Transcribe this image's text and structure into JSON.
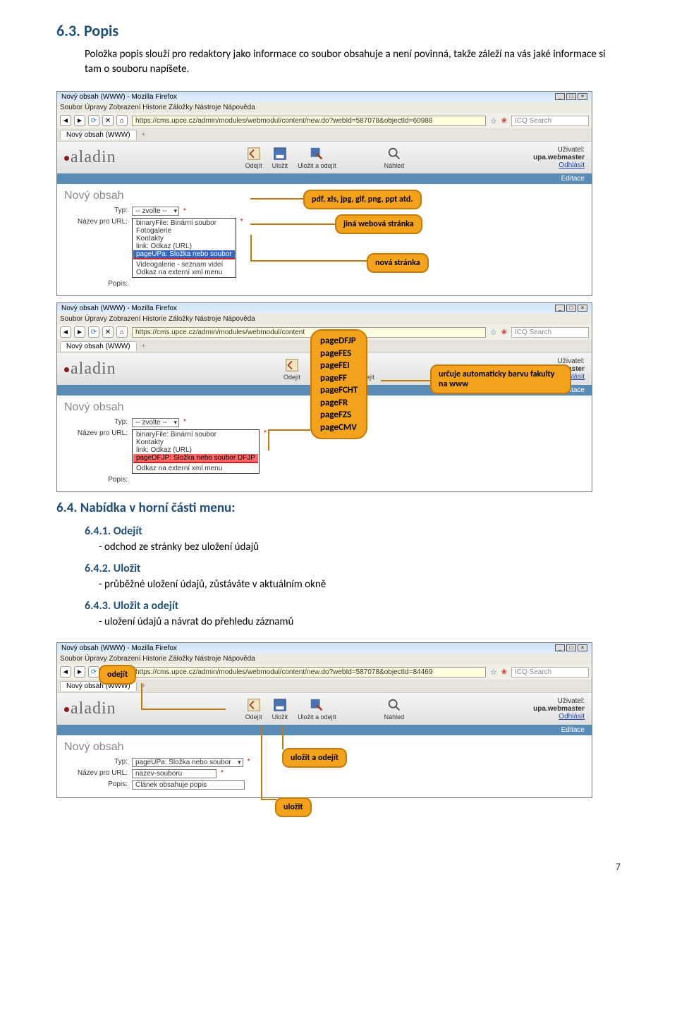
{
  "section63": {
    "heading": "6.3. Popis",
    "body": "Položka popis slouží pro redaktory jako informace co soubor obsahuje a není povinná, takže záleží na vás jaké informace si tam o souboru napíšete."
  },
  "callouts1": {
    "pdf": "pdf, xls, jpg, gif, png, ppt atd.",
    "jina": "jiná webová stránka",
    "nova": "nová stránka"
  },
  "callouts2": {
    "pagesHeading": "",
    "pages": [
      "pageDFJP",
      "pageFES",
      "pageFEI",
      "pageFF",
      "pageFCHT",
      "pageFR",
      "pageFZS",
      "pageCMV"
    ],
    "barva": "určuje automaticky barvu fakulty na www"
  },
  "browser": {
    "title": "Nový obsah (WWW) - Mozilla Firefox",
    "menus": "Soubor  Úpravy  Zobrazení  Historie  Záložky  Nástroje  Nápověda",
    "url1": "https://cms.upce.cz/admin/modules/webmodul/content/new.do?webId=587078&objectId=60988",
    "url2": "https://cms.upce.cz/admin/modules/webmodul/content",
    "url3": "https://cms.upce.cz/admin/modules/webmodul/content/new.do?webId=587078&objectId=84469",
    "tabLabel": "Nový obsah (WWW)",
    "searchPlaceholder": "ICQ Search",
    "logo": "aladin",
    "tools": {
      "odejit": "Odejít",
      "ulozit": "Uložit",
      "ulozitOdejit": "Uložit a odejít",
      "nahled": "Náhled"
    },
    "userLabel": "Uživatel:",
    "userName": "upa.webmaster",
    "logout": "Odhlásit",
    "editace": "Editace",
    "formTitle": "Nový obsah",
    "labels": {
      "typ": "Typ:",
      "nazev": "Název pro URL:",
      "popis": "Popis:"
    },
    "typValue": "-- zvolte --",
    "nazevEmpty": "",
    "dropdown1": [
      "binaryFile: Binární soubor",
      "Fotogalerie",
      "Kontakty",
      "link: Odkaz (URL)",
      "pageUPa: Složka nebo soubor",
      "Videogalerie - seznam videí",
      "Odkaz na externí xml menu"
    ],
    "dropdown1_selected_index": 4,
    "dropdown2": [
      "binaryFile: Binární soubor",
      "Kontakty",
      "link: Odkaz (URL)",
      "pageDFJP: Složka nebo soubor DFJP",
      "Odkaz na externí xml menu"
    ],
    "dropdown2_redhl_index": 3,
    "form3_typ": "pageUPa: Složka nebo soubor",
    "form3_nazev": "nazev-souboru",
    "form3_popis": "Článek obsahuje popis"
  },
  "section64": {
    "heading": "6.4. Nabídka v horní části menu:",
    "item1_h": "6.4.1. Odejít",
    "item1_t": "- odchod ze stránky bez uložení údajů",
    "item2_h": "6.4.2. Uložit",
    "item2_t": "- průběžné uložení údajů, zůstáváte v aktuálním okně",
    "item3_h": "6.4.3. Uložit a odejít",
    "item3_t": "- uložení údajů a návrat do přehledu záznamů"
  },
  "callouts3": {
    "odejit": "odejít",
    "ulozitOdejit": "uložit a odejít",
    "ulozit": "uložit"
  },
  "pageNumber": "7",
  "colors": {
    "heading": "#1f4e79",
    "callout_bg": "#f2a31b",
    "callout_border": "#c27a0b",
    "redline": "#cc2222"
  }
}
